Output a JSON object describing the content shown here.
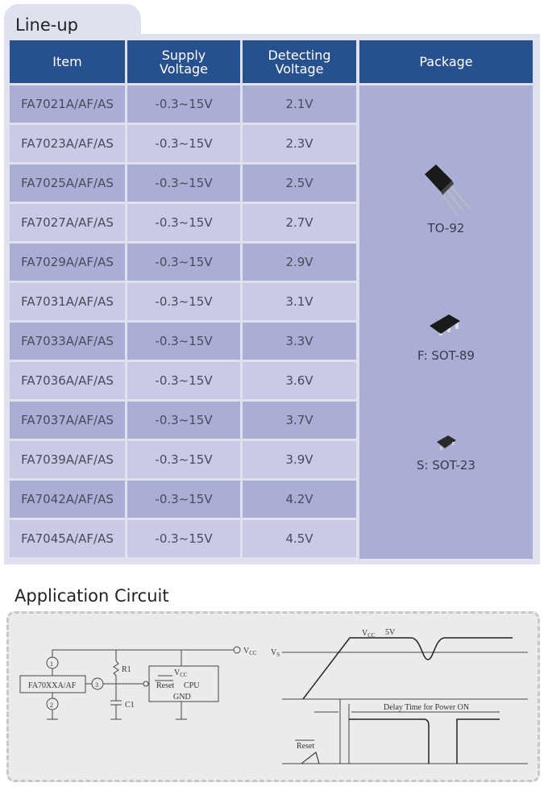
{
  "lineup": {
    "title": "Line-up",
    "headers": [
      "Item",
      "Supply Voltage",
      "Detecting Voltage",
      "Package"
    ],
    "header_lines": {
      "supply": [
        "Supply",
        "Voltage"
      ],
      "detecting": [
        "Detecting",
        "Voltage"
      ]
    },
    "rows": [
      {
        "item": "FA7021A/AF/AS",
        "supply": "-0.3~15V",
        "detect": "2.1V"
      },
      {
        "item": "FA7023A/AF/AS",
        "supply": "-0.3~15V",
        "detect": "2.3V"
      },
      {
        "item": "FA7025A/AF/AS",
        "supply": "-0.3~15V",
        "detect": "2.5V"
      },
      {
        "item": "FA7027A/AF/AS",
        "supply": "-0.3~15V",
        "detect": "2.7V"
      },
      {
        "item": "FA7029A/AF/AS",
        "supply": "-0.3~15V",
        "detect": "2.9V"
      },
      {
        "item": "FA7031A/AF/AS",
        "supply": "-0.3~15V",
        "detect": "3.1V"
      },
      {
        "item": "FA7033A/AF/AS",
        "supply": "-0.3~15V",
        "detect": "3.3V"
      },
      {
        "item": "FA7036A/AF/AS",
        "supply": "-0.3~15V",
        "detect": "3.6V"
      },
      {
        "item": "FA7037A/AF/AS",
        "supply": "-0.3~15V",
        "detect": "3.7V"
      },
      {
        "item": "FA7039A/AF/AS",
        "supply": "-0.3~15V",
        "detect": "3.9V"
      },
      {
        "item": "FA7042A/AF/AS",
        "supply": "-0.3~15V",
        "detect": "4.2V"
      },
      {
        "item": "FA7045A/AF/AS",
        "supply": "-0.3~15V",
        "detect": "4.5V"
      }
    ],
    "packages": [
      {
        "label": "TO-92",
        "icon": "to92-package-icon"
      },
      {
        "label": "F: SOT-89",
        "icon": "sot89-package-icon"
      },
      {
        "label": "S: SOT-23",
        "icon": "sot23-package-icon"
      }
    ],
    "colors": {
      "header": "#27508f",
      "row_dark": "#aaaed5",
      "row_light": "#c8cae6",
      "panel": "#dfe1ef"
    }
  },
  "application": {
    "title": "Application Circuit",
    "circuit": {
      "ic_label": "FA70XXA/AF",
      "pin1": "1",
      "pin2": "2",
      "pin3": "3",
      "r1": "R1",
      "c1": "C1",
      "vcc_out": "V",
      "vcc_out_sub": "CC",
      "cpu_vcc": "V",
      "cpu_vcc_sub": "CC",
      "cpu_reset": "Reset",
      "cpu_label": "CPU",
      "cpu_gnd": "GND"
    },
    "timing": {
      "vs": "V",
      "vs_sub": "S",
      "vcc": "V",
      "vcc_sub": "CC",
      "vcc_level": "5V",
      "delay": "Delay Time for Power ON",
      "reset": "Reset"
    }
  }
}
